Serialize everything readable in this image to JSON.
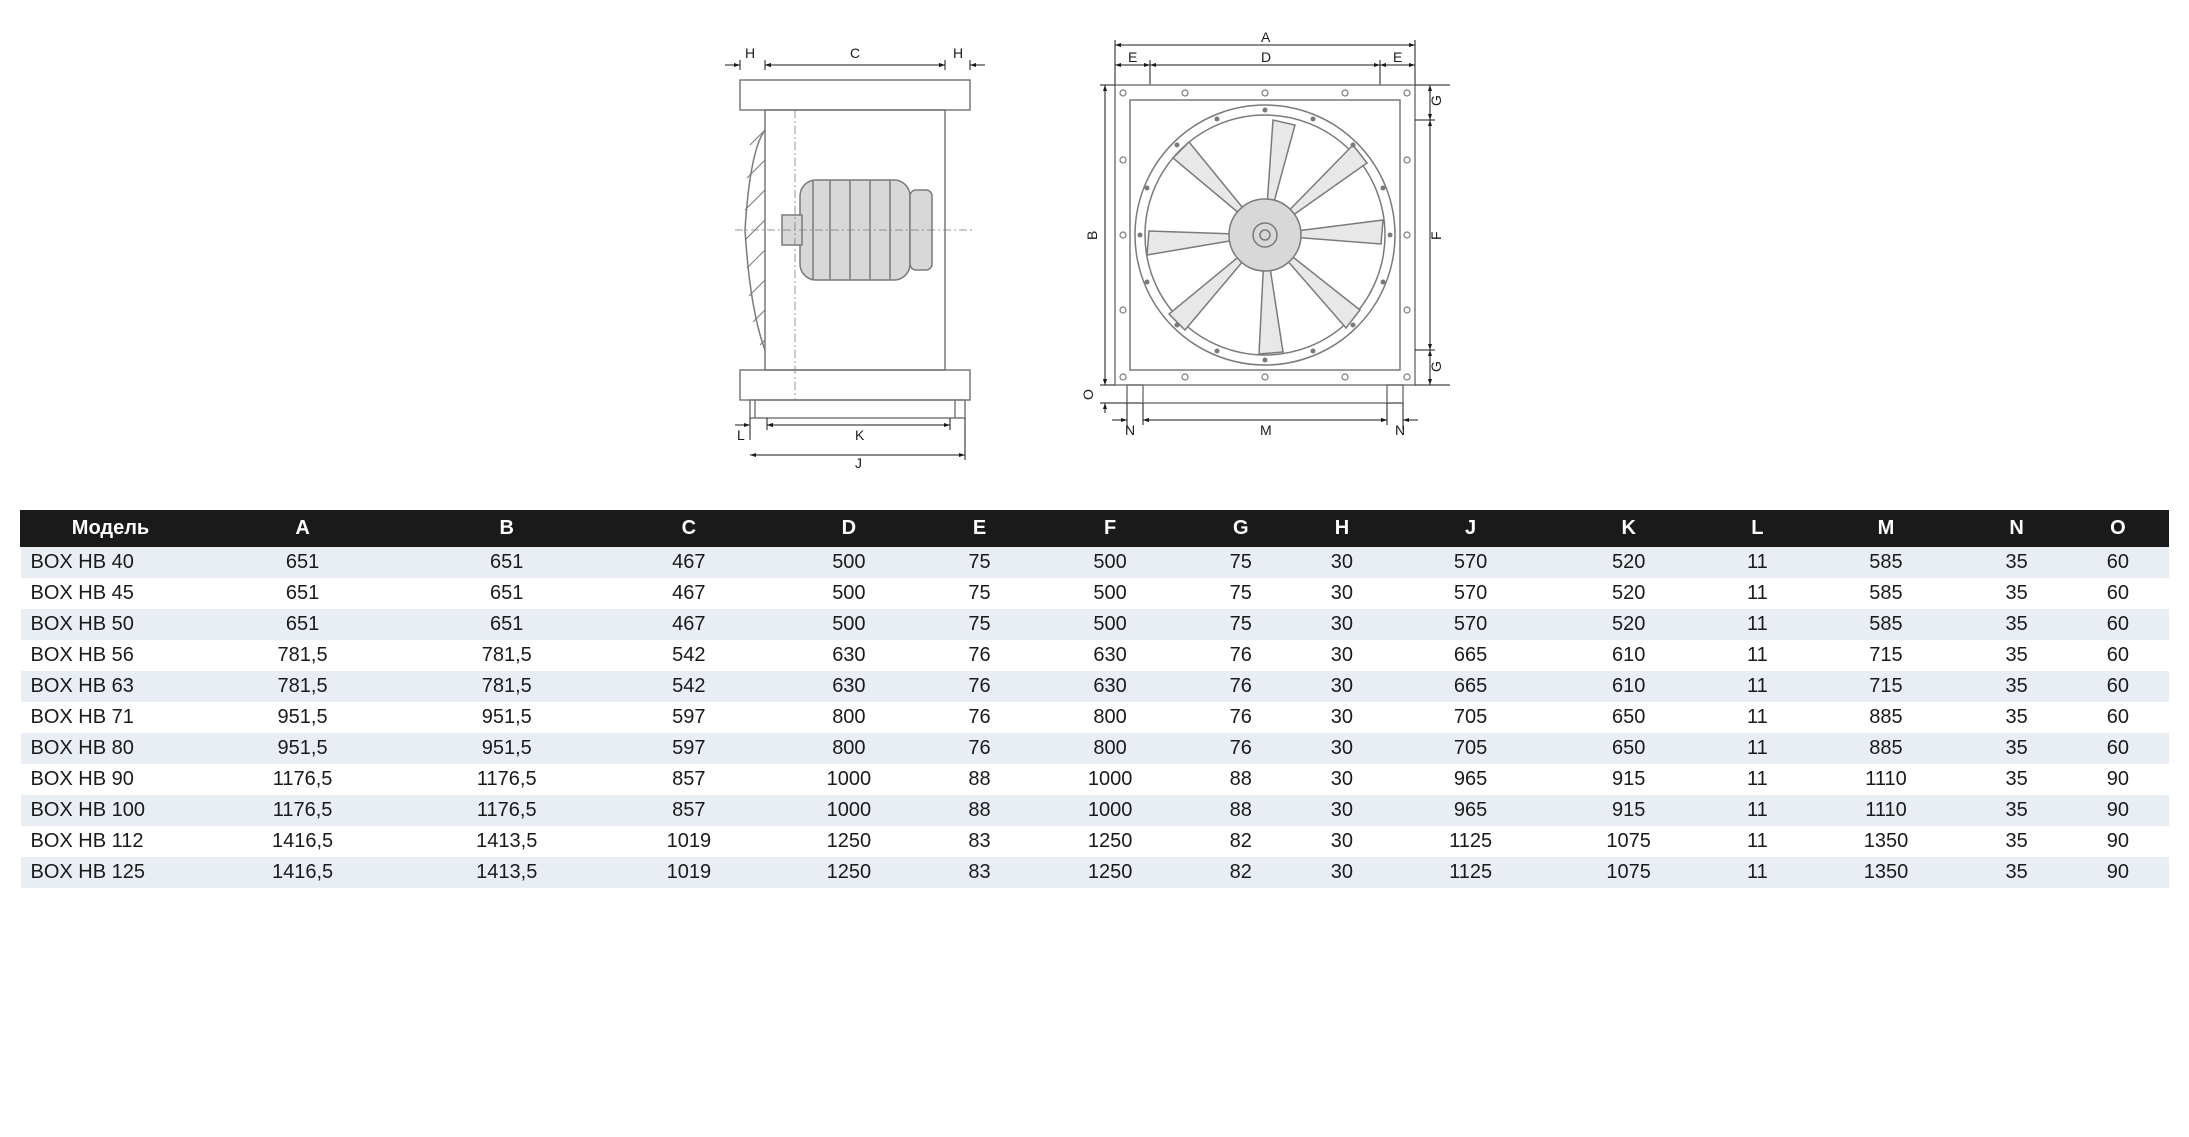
{
  "diagram": {
    "type": "technical-drawing",
    "views": [
      {
        "name": "side",
        "labels": {
          "top_left": "H",
          "top_center": "C",
          "top_right": "H",
          "bottom_inner": "K",
          "bottom_outer": "J",
          "bottom_left": "L"
        }
      },
      {
        "name": "front",
        "labels": {
          "top_outer": "A",
          "top_left": "E",
          "top_center": "D",
          "top_right": "E",
          "right_top": "G",
          "right_center": "F",
          "right_bottom": "G",
          "left_center": "B",
          "left_bottom": "O",
          "bottom_left": "N",
          "bottom_center": "M",
          "bottom_right": "N"
        }
      }
    ],
    "colors": {
      "line": "#7a7a7a",
      "fill": "#d8d8d8",
      "dim_text": "#1a1a1a"
    }
  },
  "table": {
    "type": "table",
    "header_bg": "#1a1a1a",
    "header_fg": "#ffffff",
    "row_odd_bg": "#e9eef5",
    "row_even_bg": "#ffffff",
    "text_color": "#1a1a1a",
    "font_size": 20,
    "columns": [
      "Модель",
      "A",
      "B",
      "C",
      "D",
      "E",
      "F",
      "G",
      "H",
      "J",
      "K",
      "L",
      "M",
      "N",
      "O"
    ],
    "rows": [
      [
        "BOX HB 40",
        "651",
        "651",
        "467",
        "500",
        "75",
        "500",
        "75",
        "30",
        "570",
        "520",
        "11",
        "585",
        "35",
        "60"
      ],
      [
        "BOX HB 45",
        "651",
        "651",
        "467",
        "500",
        "75",
        "500",
        "75",
        "30",
        "570",
        "520",
        "11",
        "585",
        "35",
        "60"
      ],
      [
        "BOX HB 50",
        "651",
        "651",
        "467",
        "500",
        "75",
        "500",
        "75",
        "30",
        "570",
        "520",
        "11",
        "585",
        "35",
        "60"
      ],
      [
        "BOX HB 56",
        "781,5",
        "781,5",
        "542",
        "630",
        "76",
        "630",
        "76",
        "30",
        "665",
        "610",
        "11",
        "715",
        "35",
        "60"
      ],
      [
        "BOX HB 63",
        "781,5",
        "781,5",
        "542",
        "630",
        "76",
        "630",
        "76",
        "30",
        "665",
        "610",
        "11",
        "715",
        "35",
        "60"
      ],
      [
        "BOX HB 71",
        "951,5",
        "951,5",
        "597",
        "800",
        "76",
        "800",
        "76",
        "30",
        "705",
        "650",
        "11",
        "885",
        "35",
        "60"
      ],
      [
        "BOX HB 80",
        "951,5",
        "951,5",
        "597",
        "800",
        "76",
        "800",
        "76",
        "30",
        "705",
        "650",
        "11",
        "885",
        "35",
        "60"
      ],
      [
        "BOX HB 90",
        "1176,5",
        "1176,5",
        "857",
        "1000",
        "88",
        "1000",
        "88",
        "30",
        "965",
        "915",
        "11",
        "1110",
        "35",
        "90"
      ],
      [
        "BOX HB 100",
        "1176,5",
        "1176,5",
        "857",
        "1000",
        "88",
        "1000",
        "88",
        "30",
        "965",
        "915",
        "11",
        "1110",
        "35",
        "90"
      ],
      [
        "BOX HB 112",
        "1416,5",
        "1413,5",
        "1019",
        "1250",
        "83",
        "1250",
        "82",
        "30",
        "1125",
        "1075",
        "11",
        "1350",
        "35",
        "90"
      ],
      [
        "BOX HB 125",
        "1416,5",
        "1413,5",
        "1019",
        "1250",
        "83",
        "1250",
        "82",
        "30",
        "1125",
        "1075",
        "11",
        "1350",
        "35",
        "90"
      ]
    ]
  }
}
